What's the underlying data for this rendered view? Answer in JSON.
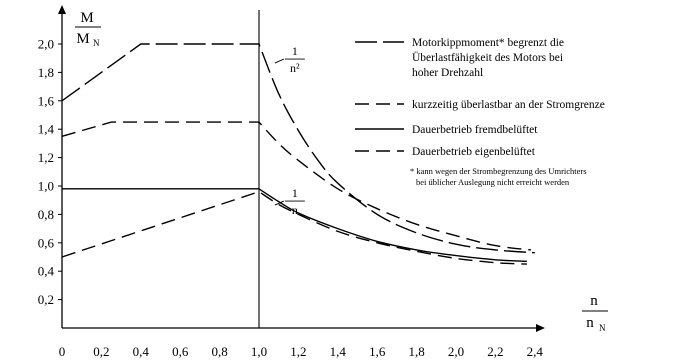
{
  "chart_data": {
    "type": "line",
    "title": "",
    "ylabel": {
      "numerator": "M",
      "denominator": "M",
      "sub": "N"
    },
    "xlabel": {
      "numerator": "n",
      "denominator": "n",
      "sub": "N"
    },
    "xlim": [
      0,
      2.6
    ],
    "ylim": [
      0,
      2.1
    ],
    "x_ticks": [
      "0",
      "0,2",
      "0,4",
      "0,6",
      "0,8",
      "1,0",
      "1,2",
      "1,4",
      "1,6",
      "1,8",
      "2,0",
      "2,2",
      "2,4"
    ],
    "y_ticks": [
      "0,2",
      "0,4",
      "0,6",
      "0,8",
      "1,0",
      "1,2",
      "1,4",
      "1,6",
      "1,8",
      "2,0"
    ],
    "y_tick_values": [
      0.2,
      0.4,
      0.6,
      0.8,
      1.0,
      1.2,
      1.4,
      1.6,
      1.8,
      2.0
    ],
    "x_tick_values": [
      0,
      0.2,
      0.4,
      0.6,
      0.8,
      1.0,
      1.2,
      1.4,
      1.6,
      1.8,
      2.0,
      2.2,
      2.4
    ],
    "annotations": [
      {
        "num": "1",
        "den": "n²",
        "x": 1.05,
        "y": 1.88
      },
      {
        "num": "1",
        "den": "n",
        "x": 1.05,
        "y": 0.88
      }
    ],
    "series": [
      {
        "name": "Motorkippmoment* begrenzt die Überlastfähigkeit des Motors bei hoher Drehzahl",
        "style": "longdash",
        "color": "#000000",
        "x": [
          0,
          0.4,
          1.0,
          1.1,
          1.2,
          1.3,
          1.4,
          1.6,
          1.8,
          2.0,
          2.2,
          2.4
        ],
        "y": [
          1.6,
          2.0,
          2.0,
          1.65,
          1.39,
          1.18,
          1.02,
          0.8,
          0.67,
          0.59,
          0.55,
          0.53
        ]
      },
      {
        "name": "kurzzeitig überlastbar an der Stromgrenze",
        "style": "dash",
        "color": "#000000",
        "x": [
          0,
          0.25,
          1.0,
          1.1,
          1.2,
          1.4,
          1.6,
          1.8,
          2.0,
          2.2,
          2.38
        ],
        "y": [
          1.35,
          1.45,
          1.45,
          1.3,
          1.18,
          0.98,
          0.84,
          0.73,
          0.65,
          0.58,
          0.55
        ]
      },
      {
        "name": "Dauerbetrieb fremdbelüftet",
        "style": "solid",
        "color": "#000000",
        "x": [
          0,
          1.0,
          1.1,
          1.2,
          1.4,
          1.6,
          1.8,
          2.0,
          2.2,
          2.36
        ],
        "y": [
          0.98,
          0.98,
          0.89,
          0.81,
          0.7,
          0.61,
          0.55,
          0.51,
          0.48,
          0.47
        ]
      },
      {
        "name": "Dauerbetrieb eigenbelüftet",
        "style": "dash",
        "color": "#000000",
        "x": [
          0,
          1.0,
          1.1,
          1.2,
          1.4,
          1.6,
          1.8,
          2.0,
          2.2,
          2.36
        ],
        "y": [
          0.5,
          0.96,
          0.87,
          0.8,
          0.68,
          0.6,
          0.54,
          0.49,
          0.46,
          0.45
        ]
      }
    ],
    "note": "* kann wegen der Strombegrenzung des Umrichters bei üblicher Auslegung nicht erreicht werden"
  }
}
